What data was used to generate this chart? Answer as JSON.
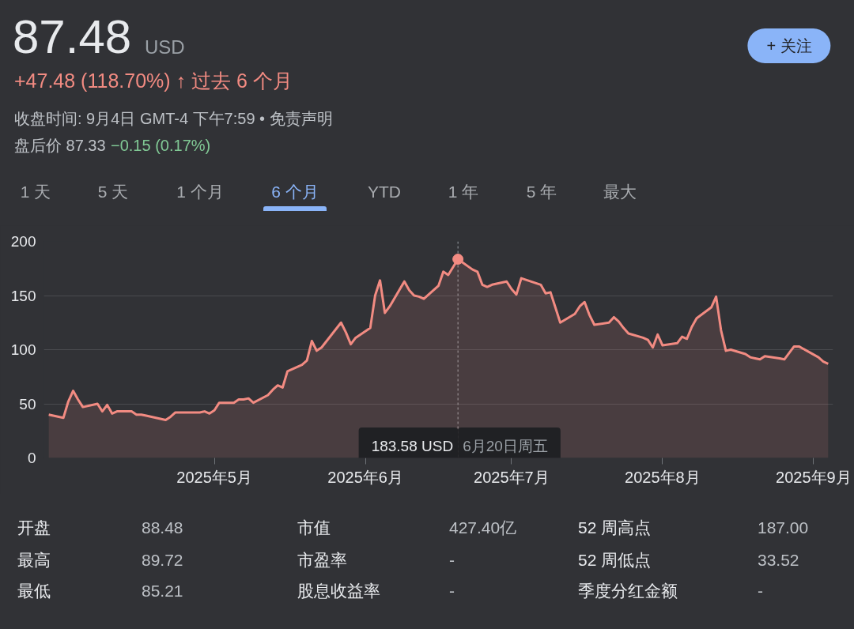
{
  "chart_data": {
    "type": "area",
    "title": "87.48",
    "x": [
      "2025-03-28",
      "2025-03-31",
      "2025-04-01",
      "2025-04-02",
      "2025-04-03",
      "2025-04-04",
      "2025-04-07",
      "2025-04-08",
      "2025-04-09",
      "2025-04-10",
      "2025-04-11",
      "2025-04-14",
      "2025-04-15",
      "2025-04-16",
      "2025-04-17",
      "2025-04-21",
      "2025-04-22",
      "2025-04-23",
      "2025-04-24",
      "2025-04-25",
      "2025-04-28",
      "2025-04-29",
      "2025-04-30",
      "2025-05-01",
      "2025-05-02",
      "2025-05-05",
      "2025-05-06",
      "2025-05-07",
      "2025-05-08",
      "2025-05-09",
      "2025-05-12",
      "2025-05-13",
      "2025-05-14",
      "2025-05-15",
      "2025-05-16",
      "2025-05-19",
      "2025-05-20",
      "2025-05-21",
      "2025-05-22",
      "2025-05-23",
      "2025-05-27",
      "2025-05-28",
      "2025-05-29",
      "2025-05-30",
      "2025-06-02",
      "2025-06-03",
      "2025-06-04",
      "2025-06-05",
      "2025-06-06",
      "2025-06-09",
      "2025-06-10",
      "2025-06-11",
      "2025-06-12",
      "2025-06-13",
      "2025-06-16",
      "2025-06-17",
      "2025-06-18",
      "2025-06-20",
      "2025-06-23",
      "2025-06-24",
      "2025-06-25",
      "2025-06-26",
      "2025-06-27",
      "2025-06-30",
      "2025-07-01",
      "2025-07-02",
      "2025-07-03",
      "2025-07-07",
      "2025-07-08",
      "2025-07-09",
      "2025-07-10",
      "2025-07-11",
      "2025-07-14",
      "2025-07-15",
      "2025-07-16",
      "2025-07-17",
      "2025-07-18",
      "2025-07-21",
      "2025-07-22",
      "2025-07-23",
      "2025-07-24",
      "2025-07-25",
      "2025-07-28",
      "2025-07-29",
      "2025-07-30",
      "2025-07-31",
      "2025-08-01",
      "2025-08-04",
      "2025-08-05",
      "2025-08-06",
      "2025-08-07",
      "2025-08-08",
      "2025-08-11",
      "2025-08-12",
      "2025-08-13",
      "2025-08-14",
      "2025-08-15",
      "2025-08-18",
      "2025-08-19",
      "2025-08-20",
      "2025-08-21",
      "2025-08-22",
      "2025-08-25",
      "2025-08-26",
      "2025-08-27",
      "2025-08-28",
      "2025-08-29",
      "2025-09-02",
      "2025-09-03",
      "2025-09-04"
    ],
    "series": [
      {
        "color": "#f28b82",
        "values": [
          40,
          37,
          52,
          62,
          54,
          47,
          50,
          43,
          49,
          41,
          43,
          43,
          40,
          40,
          39,
          35,
          38,
          42,
          42,
          42,
          42,
          43,
          41,
          44,
          51,
          51,
          54,
          54,
          55,
          51,
          58,
          63,
          67,
          65,
          80,
          86,
          90,
          108,
          99,
          102,
          125,
          116,
          105,
          111,
          120,
          150,
          164,
          134,
          140,
          163,
          155,
          150,
          149,
          147,
          159,
          172,
          169,
          183.58,
          174,
          172,
          160,
          158,
          160,
          163,
          156,
          151,
          166,
          160,
          152,
          153,
          139,
          125,
          133,
          140,
          144,
          132,
          123,
          125,
          130,
          126,
          120,
          115,
          111,
          109,
          102,
          114,
          104,
          106,
          112,
          110,
          121,
          129,
          139,
          149,
          118,
          99,
          100,
          96,
          93,
          92,
          91,
          94,
          92,
          91,
          97,
          103,
          103,
          93,
          89,
          87
        ]
      },
      {
        "type": "scatter",
        "color": "#f28b82",
        "x": [
          "2025-06-20"
        ],
        "values": [
          183.58
        ]
      }
    ],
    "xlim": [
      "2025-03-27",
      "2025-09-05"
    ],
    "xticks": [
      {
        "value": "2025-05-01",
        "label": "2025年5月"
      },
      {
        "value": "2025-06-01",
        "label": "2025年6月"
      },
      {
        "value": "2025-07-01",
        "label": "2025年7月"
      },
      {
        "value": "2025-08-01",
        "label": "2025年8月"
      },
      {
        "value": "2025-09-01",
        "label": "2025年9月"
      }
    ],
    "ylim": [
      0,
      200
    ],
    "yticks": [
      0,
      50,
      100,
      150,
      200
    ],
    "grid": "y",
    "ref_lines": [
      {
        "axis": "x",
        "value": "2025-06-20",
        "label": "183.58 USD",
        "color": "#9aa0a6",
        "line_style": "dashed"
      }
    ],
    "annotations": [
      "USD",
      "+47.48 (118.70%) ↑ 过去 6 个月",
      "收盘时间: 9月4日 GMT-4 下午7:59 • 免责声明",
      "盘后价 87.33",
      "−0.15 (0.17%)",
      "+ 关注",
      "1 天",
      "5 天",
      "1 个月",
      "6 个月",
      "YTD",
      "1 年",
      "5 年",
      "最大",
      "开盘",
      "88.48",
      "最高",
      "89.72",
      "最低",
      "85.21",
      "市值",
      "427.40亿",
      "市盈率",
      "-",
      "股息收益率",
      "-",
      "52 周高点",
      "187.00",
      "52 周低点",
      "33.52",
      "季度分红金额",
      "-",
      "6月20日周五"
    ]
  }
}
